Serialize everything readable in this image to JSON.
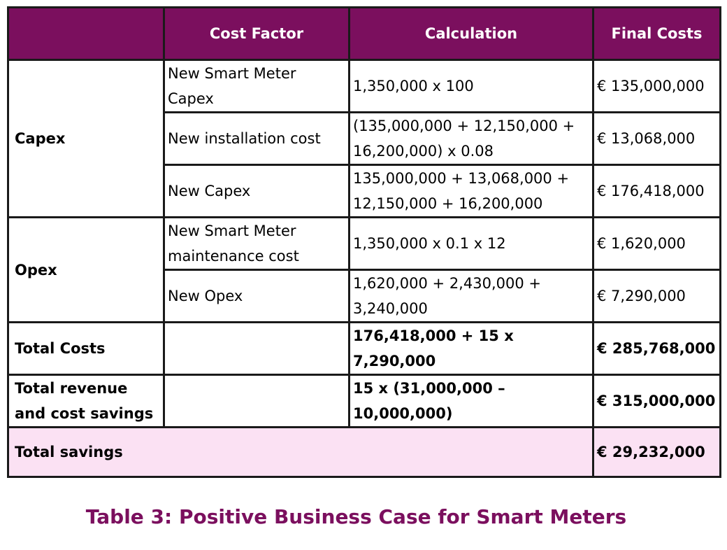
{
  "table": {
    "headers": [
      "",
      "Cost Factor",
      "Calculation",
      "Final Costs"
    ],
    "capex": {
      "label": "Capex",
      "rows": [
        {
          "factor": "New Smart Meter Capex",
          "calc": "1,350,000 x 100",
          "cost": "€ 135,000,000"
        },
        {
          "factor": "New installation cost",
          "calc": "(135,000,000 + 12,150,000 + 16,200,000) x 0.08",
          "cost": "€ 13,068,000"
        },
        {
          "factor": "New Capex",
          "calc": "135,000,000 + 13,068,000 + 12,150,000 + 16,200,000",
          "cost": "€ 176,418,000"
        }
      ]
    },
    "opex": {
      "label": "Opex",
      "rows": [
        {
          "factor": "New Smart Meter maintenance cost",
          "calc": "1,350,000 x 0.1 x 12",
          "cost": "€ 1,620,000"
        },
        {
          "factor": "New Opex",
          "calc": "1,620,000 + 2,430,000 + 3,240,000",
          "cost": "€ 7,290,000"
        }
      ]
    },
    "total_costs": {
      "label": "Total Costs",
      "factor": "",
      "calc": "176,418,000 + 15 x 7,290,000",
      "cost": "€ 285,768,000"
    },
    "total_revenue": {
      "label": "Total revenue and cost savings",
      "factor": "",
      "calc": "15 x (31,000,000 – 10,000,000)",
      "cost": "€ 315,000,000"
    },
    "total_savings": {
      "label": "Total savings",
      "cost": "€ 29,232,000"
    }
  },
  "caption": "Table 3: Positive Business Case for Smart Meters",
  "colors": {
    "header_bg": "#7b0f5e",
    "savings_bg": "#fbe1f3",
    "caption": "#7b0f5e"
  }
}
